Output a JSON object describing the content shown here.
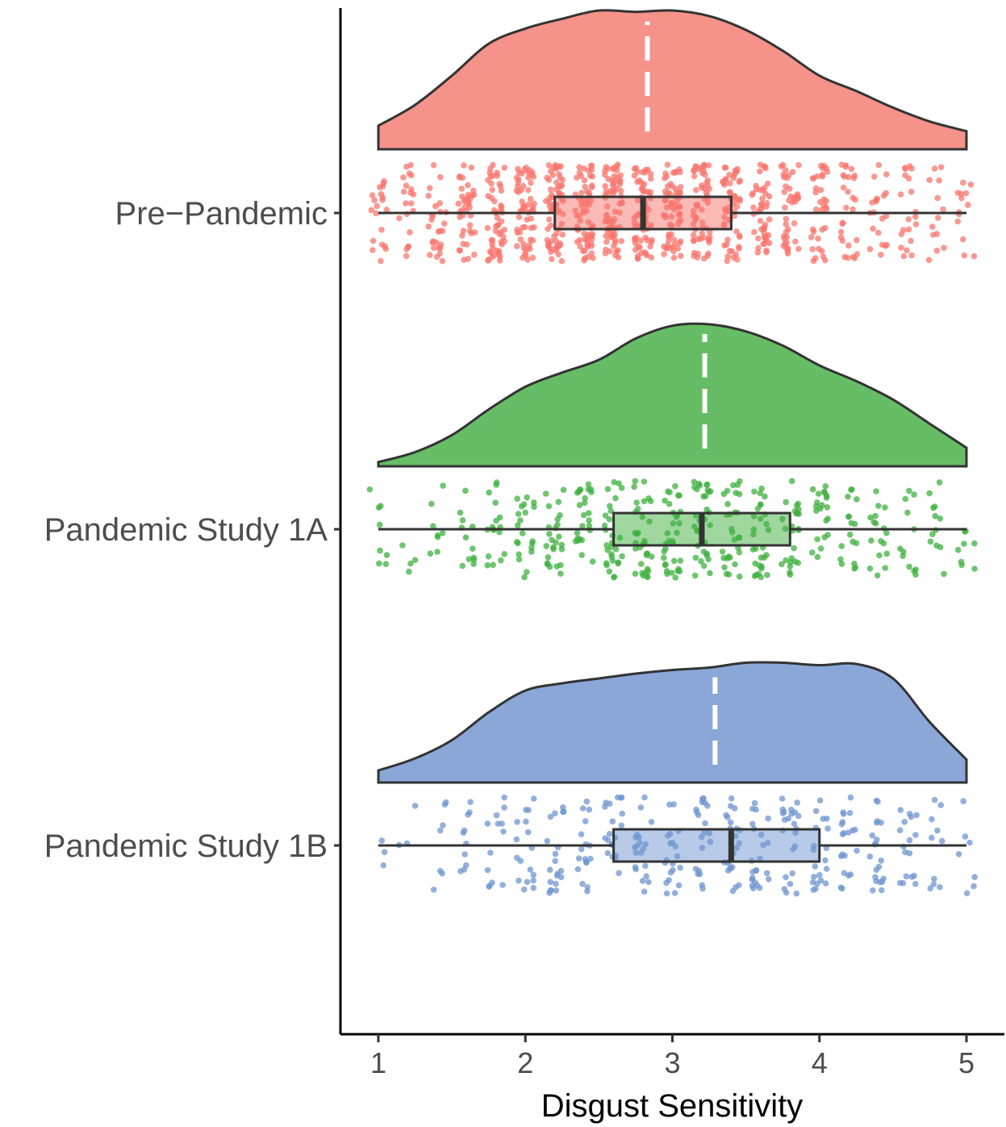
{
  "chart_data": {
    "type": "raincloud",
    "orientation": "horizontal",
    "xlabel": "Disgust Sensitivity",
    "ylabel": "",
    "xlim": [
      0.75,
      5.25
    ],
    "xticks": [
      1,
      2,
      3,
      4,
      5
    ],
    "xtick_labels": [
      "1",
      "2",
      "3",
      "4",
      "5"
    ],
    "grid": false,
    "legend": "none",
    "mean_line_color": "#ffffff",
    "outline_color": "#333333",
    "groups": [
      {
        "name": "Pre−Pandemic",
        "color": "#f8766d",
        "density_fill": "#f5928a",
        "mean": 2.83,
        "box": {
          "min": 1.0,
          "q1": 2.2,
          "median": 2.8,
          "q3": 3.4,
          "max": 5.0
        },
        "density": {
          "x": [
            1.0,
            1.25,
            1.5,
            1.75,
            2.0,
            2.25,
            2.5,
            2.75,
            3.0,
            3.25,
            3.5,
            3.75,
            4.0,
            4.25,
            4.5,
            4.75,
            5.0
          ],
          "y": [
            0.17,
            0.32,
            0.53,
            0.76,
            0.87,
            0.94,
            1.0,
            0.99,
            1.0,
            0.96,
            0.86,
            0.71,
            0.53,
            0.42,
            0.3,
            0.2,
            0.13
          ]
        },
        "points": {
          "count": 900,
          "values": [
            1.0,
            1.2,
            1.4,
            1.6,
            1.8,
            2.0,
            2.2,
            2.4,
            2.6,
            2.8,
            3.0,
            3.2,
            3.4,
            3.6,
            3.8,
            4.0,
            4.2,
            4.4,
            4.6,
            4.8,
            5.0
          ],
          "weights": [
            3,
            3,
            4,
            6,
            8,
            9,
            10,
            10,
            11,
            11,
            10,
            9,
            8,
            7,
            6,
            5,
            4,
            3,
            3,
            2,
            2
          ]
        }
      },
      {
        "name": "Pandemic Study 1A",
        "color": "#3fb03f",
        "density_fill": "#66bd66",
        "mean": 3.22,
        "box": {
          "min": 1.0,
          "q1": 2.6,
          "median": 3.2,
          "q3": 3.8,
          "max": 5.0
        },
        "density": {
          "x": [
            1.0,
            1.25,
            1.5,
            1.75,
            2.0,
            2.25,
            2.5,
            2.75,
            3.0,
            3.25,
            3.5,
            3.75,
            4.0,
            4.25,
            4.5,
            4.75,
            5.0
          ],
          "y": [
            0.03,
            0.1,
            0.22,
            0.4,
            0.56,
            0.66,
            0.75,
            0.9,
            0.99,
            1.0,
            0.95,
            0.85,
            0.71,
            0.6,
            0.47,
            0.3,
            0.13
          ]
        },
        "points": {
          "count": 420,
          "values": [
            1.0,
            1.2,
            1.4,
            1.6,
            1.8,
            2.0,
            2.2,
            2.4,
            2.6,
            2.8,
            3.0,
            3.2,
            3.4,
            3.6,
            3.8,
            4.0,
            4.2,
            4.4,
            4.6,
            4.8,
            5.0
          ],
          "weights": [
            2,
            1,
            2,
            3,
            4,
            5,
            6,
            6,
            7,
            8,
            8,
            8,
            7,
            7,
            6,
            5,
            4,
            4,
            3,
            3,
            2
          ]
        }
      },
      {
        "name": "Pandemic Study 1B",
        "color": "#6f95cf",
        "density_fill": "#8aa7d7",
        "mean": 3.29,
        "box": {
          "min": 1.0,
          "q1": 2.6,
          "median": 3.4,
          "q3": 4.0,
          "max": 5.0
        },
        "density": {
          "x": [
            1.0,
            1.25,
            1.5,
            1.75,
            2.0,
            2.25,
            2.5,
            2.75,
            3.0,
            3.25,
            3.5,
            3.75,
            4.0,
            4.25,
            4.5,
            4.75,
            5.0
          ],
          "y": [
            0.1,
            0.2,
            0.35,
            0.58,
            0.76,
            0.82,
            0.86,
            0.9,
            0.93,
            0.95,
            0.99,
            0.99,
            0.97,
            0.98,
            0.86,
            0.5,
            0.19
          ]
        },
        "points": {
          "count": 330,
          "values": [
            1.0,
            1.2,
            1.4,
            1.6,
            1.8,
            2.0,
            2.2,
            2.4,
            2.6,
            2.8,
            3.0,
            3.2,
            3.4,
            3.6,
            3.8,
            4.0,
            4.2,
            4.4,
            4.6,
            4.8,
            5.0
          ],
          "weights": [
            1,
            1,
            2,
            3,
            4,
            5,
            6,
            5,
            6,
            6,
            6,
            6,
            7,
            7,
            7,
            6,
            6,
            6,
            5,
            3,
            2
          ]
        }
      }
    ]
  }
}
